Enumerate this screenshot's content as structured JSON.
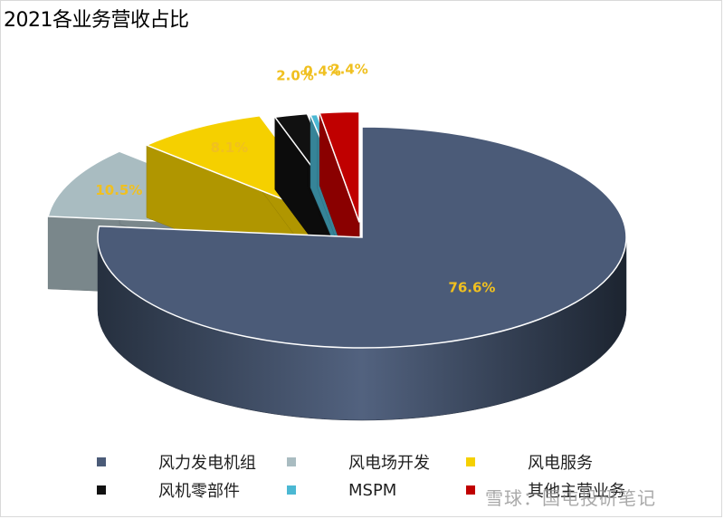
{
  "chart_data": {
    "type": "pie",
    "title": "2021各业务营收占比",
    "categories": [
      "风力发电机组",
      "风电场开发",
      "风电服务",
      "风机零部件",
      "MSPM",
      "其他主营业务"
    ],
    "values": [
      76.6,
      10.5,
      8.1,
      2.0,
      0.4,
      2.4
    ],
    "data_labels": [
      "76.6%",
      "10.5%",
      "8.1%",
      "2.0%",
      "0.4%",
      "2.4%"
    ],
    "colors": [
      "#4b5b78",
      "#a9bcc1",
      "#f5d000",
      "#111111",
      "#4bb8d3",
      "#c00000"
    ],
    "label_color": "#f0c020",
    "style": "3d-exploded",
    "legend_position": "bottom"
  },
  "watermark": "雪球：国屯投研笔记"
}
